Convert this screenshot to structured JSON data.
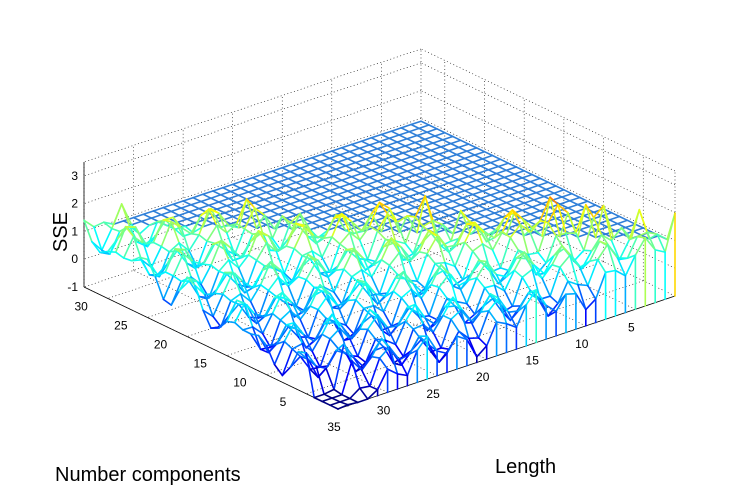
{
  "chart_data": {
    "type": "surface",
    "title": "",
    "xlabel": "Length",
    "ylabel": "Number components",
    "zlabel": "SSE",
    "xlim": [
      1,
      35
    ],
    "ylim": [
      1,
      33
    ],
    "zlim": [
      -1,
      3.5
    ],
    "grid": true,
    "colormap": "jet",
    "x_ticks": [
      "5",
      "10",
      "15",
      "20",
      "25",
      "30",
      "35"
    ],
    "y_ticks": [
      "5",
      "10",
      "15",
      "20",
      "25",
      "30"
    ],
    "z_ticks": [
      "-1",
      "0",
      "1",
      "2",
      "3"
    ],
    "surface_description": "SSE by length (1-35) and number of components (1-33); region where number of components exceeds length is flat at about 0.9 (blue), elsewhere values range from about -1 to 3.5 with highest values at small length and many components"
  },
  "colors": {
    "flat_region": "#2f7fd8",
    "grid": "#000000"
  }
}
